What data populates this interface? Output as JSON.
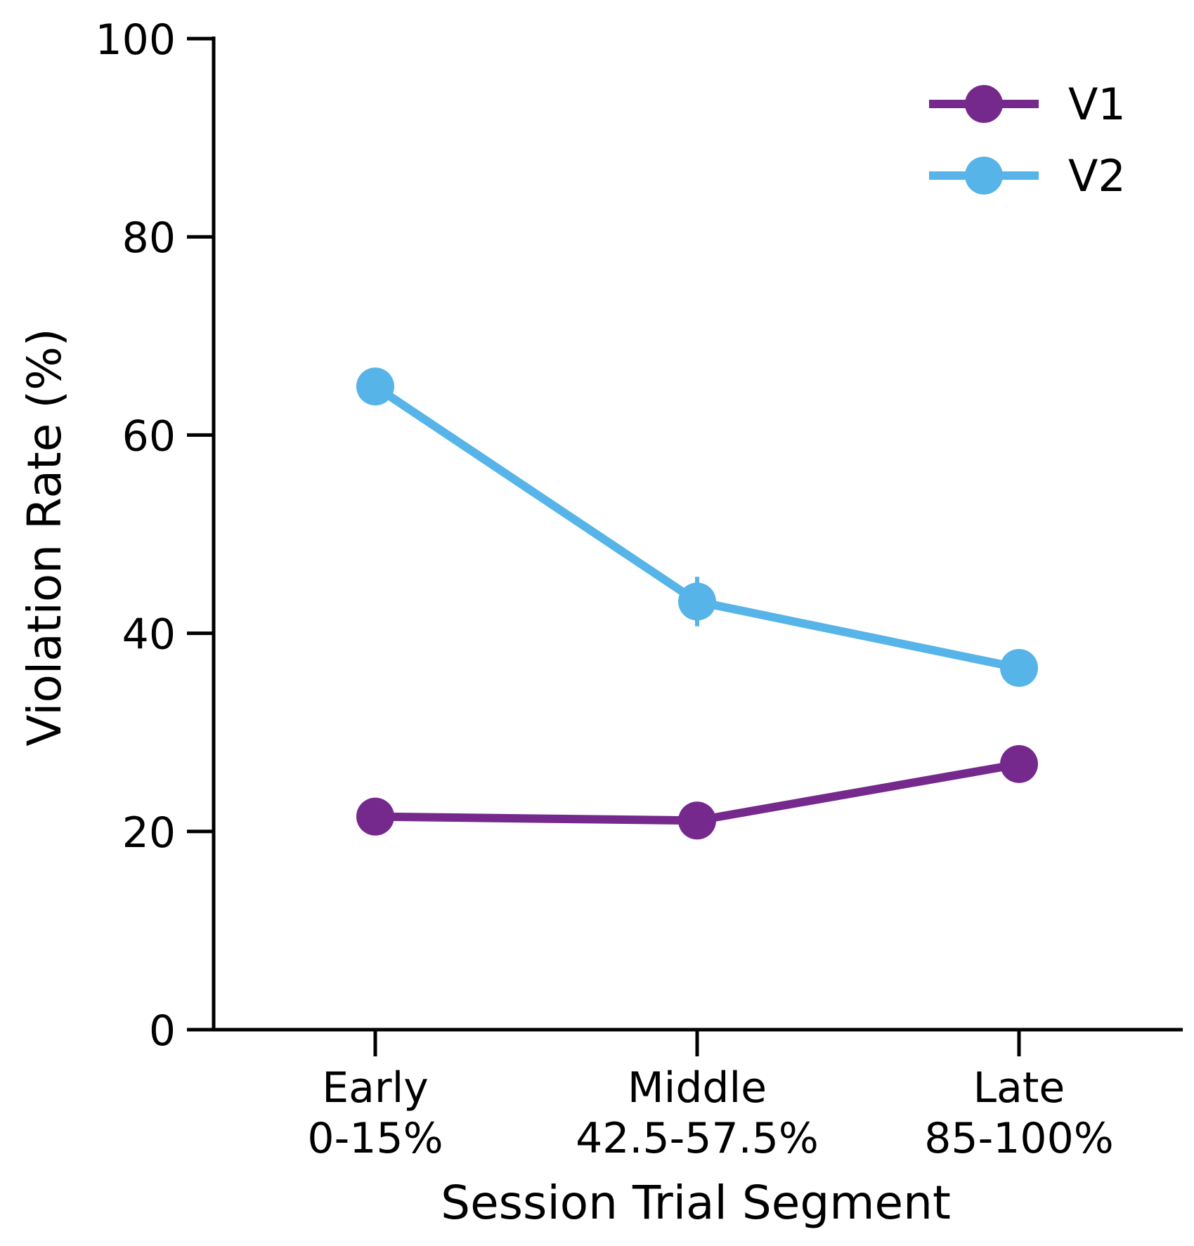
{
  "chart_data": {
    "type": "line",
    "title": "",
    "xlabel": "Session Trial Segment",
    "ylabel": "Violation Rate (%)",
    "ylim": [
      0,
      100
    ],
    "yticks": [
      "0",
      "20",
      "40",
      "60",
      "80",
      "100"
    ],
    "categories": [
      [
        "Early",
        "0-15%"
      ],
      [
        "Middle",
        "42.5-57.5%"
      ],
      [
        "Late",
        "85-100%"
      ]
    ],
    "series": [
      {
        "name": "V1",
        "color": "#76298d",
        "values": [
          21.5,
          21.1,
          26.8
        ],
        "errors": [
          0.4,
          0.4,
          0.5
        ]
      },
      {
        "name": "V2",
        "color": "#56b4e9",
        "values": [
          64.9,
          43.2,
          36.5
        ],
        "errors": [
          1.1,
          2.5,
          1.8
        ]
      }
    ],
    "legend": "top-right",
    "grid": false
  }
}
